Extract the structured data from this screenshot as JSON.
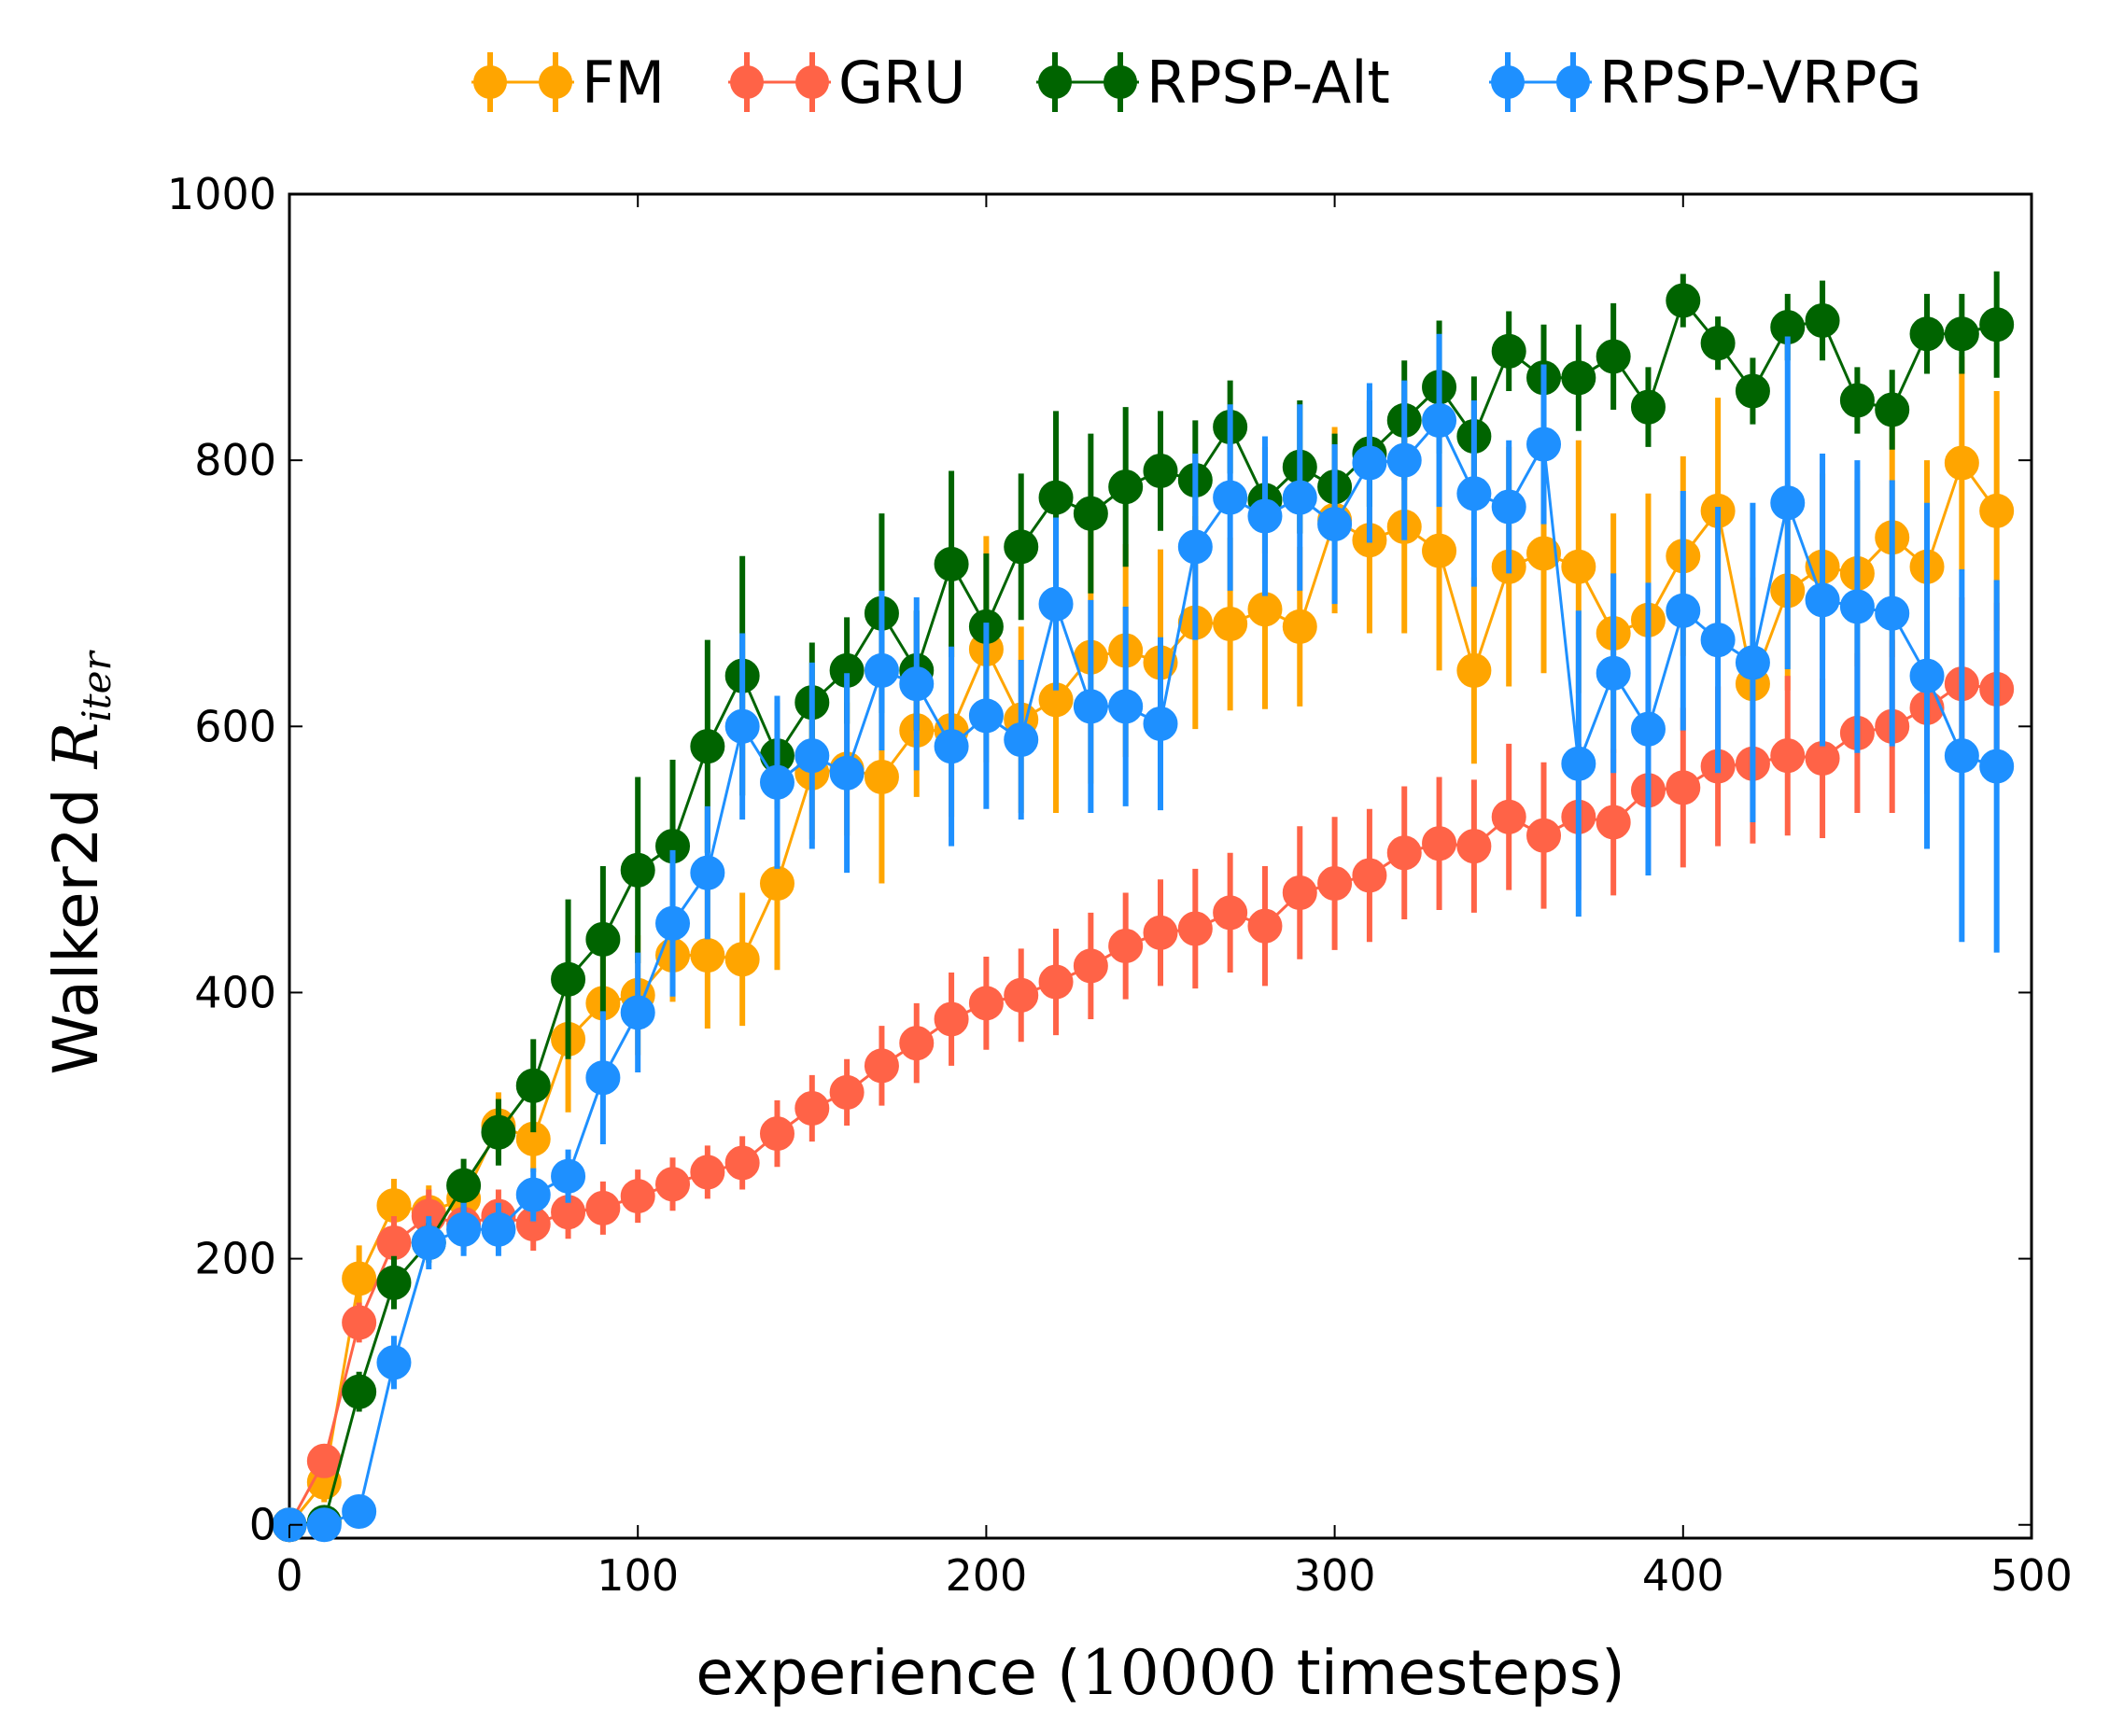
{
  "chart_data": {
    "type": "line",
    "title": "",
    "xlabel": {
      "prefix": "experience (",
      "math": "10000",
      "suffix": " timesteps)"
    },
    "ylabel": {
      "prefix": "Walker2d ",
      "math": "R",
      "sub": "iter"
    },
    "xlim": [
      0,
      500
    ],
    "ylim": [
      -10,
      1000
    ],
    "xticks": [
      0,
      100,
      200,
      300,
      400,
      500
    ],
    "yticks": [
      0,
      200,
      400,
      600,
      800,
      1000
    ],
    "grid": false,
    "legend_position": "top, outside plot area",
    "x": [
      0,
      10,
      20,
      30,
      40,
      50,
      60,
      70,
      80,
      90,
      100,
      110,
      120,
      130,
      140,
      150,
      160,
      170,
      180,
      190,
      200,
      210,
      220,
      230,
      240,
      250,
      260,
      270,
      280,
      290,
      300,
      310,
      320,
      330,
      340,
      350,
      360,
      370,
      380,
      390,
      400,
      410,
      420,
      430,
      440,
      450,
      460,
      470,
      480,
      490
    ],
    "series": [
      {
        "name": "FM",
        "color": "#ffa500",
        "values": [
          0,
          32,
          185,
          240,
          235,
          245,
          300,
          290,
          365,
          392,
          398,
          428,
          428,
          425,
          482,
          565,
          568,
          562,
          597,
          597,
          658,
          605,
          620,
          652,
          657,
          648,
          678,
          677,
          688,
          675,
          755,
          740,
          750,
          732,
          642,
          720,
          730,
          720,
          670,
          680,
          728,
          762,
          632,
          702,
          720,
          715,
          742,
          720,
          798,
          762
        ],
        "errors": [
          5,
          15,
          25,
          20,
          20,
          20,
          25,
          25,
          55,
          45,
          45,
          35,
          55,
          50,
          65,
          50,
          50,
          80,
          50,
          65,
          85,
          70,
          85,
          95,
          80,
          85,
          80,
          65,
          75,
          60,
          70,
          70,
          80,
          90,
          70,
          90,
          90,
          95,
          90,
          95,
          75,
          85,
          80,
          75,
          70,
          70,
          90,
          80,
          80,
          90
        ]
      },
      {
        "name": "GRU",
        "color": "#ff6347",
        "values": [
          0,
          48,
          152,
          212,
          232,
          226,
          232,
          226,
          235,
          238,
          247,
          256,
          265,
          272,
          294,
          313,
          325,
          345,
          362,
          380,
          392,
          398,
          408,
          420,
          435,
          445,
          448,
          460,
          450,
          475,
          482,
          488,
          505,
          512,
          510,
          532,
          518,
          532,
          528,
          552,
          554,
          570,
          572,
          578,
          576,
          595,
          600,
          614,
          632,
          628
        ],
        "errors": [
          3,
          10,
          15,
          20,
          20,
          20,
          20,
          20,
          20,
          20,
          20,
          20,
          20,
          20,
          25,
          25,
          25,
          30,
          30,
          35,
          35,
          35,
          40,
          40,
          40,
          40,
          45,
          45,
          45,
          50,
          50,
          50,
          50,
          50,
          50,
          55,
          55,
          55,
          55,
          60,
          60,
          60,
          60,
          60,
          60,
          60,
          65,
          65,
          65,
          65
        ]
      },
      {
        "name": "RPSP-Alt",
        "color": "#006400",
        "values": [
          0,
          2,
          100,
          182,
          212,
          255,
          295,
          330,
          410,
          440,
          492,
          510,
          585,
          638,
          578,
          618,
          642,
          685,
          642,
          722,
          675,
          735,
          772,
          760,
          780,
          792,
          785,
          825,
          770,
          795,
          780,
          805,
          830,
          855,
          818,
          882,
          862,
          862,
          878,
          840,
          920,
          888,
          852,
          900,
          905,
          845,
          838,
          895,
          895,
          902
        ],
        "errors": [
          3,
          10,
          15,
          20,
          15,
          20,
          25,
          35,
          60,
          55,
          70,
          65,
          80,
          90,
          40,
          45,
          40,
          75,
          45,
          70,
          55,
          55,
          65,
          60,
          60,
          45,
          45,
          35,
          40,
          50,
          40,
          40,
          45,
          50,
          45,
          30,
          40,
          40,
          40,
          30,
          20,
          20,
          25,
          25,
          30,
          25,
          30,
          30,
          30,
          40
        ]
      },
      {
        "name": "RPSP-VRPG",
        "color": "#1e90ff",
        "values": [
          0,
          0,
          10,
          122,
          212,
          222,
          222,
          248,
          262,
          336,
          385,
          452,
          490,
          600,
          558,
          578,
          565,
          642,
          632,
          585,
          608,
          590,
          692,
          615,
          615,
          602,
          735,
          772,
          758,
          772,
          752,
          798,
          800,
          830,
          775,
          765,
          812,
          572,
          640,
          598,
          687,
          665,
          648,
          768,
          695,
          690,
          685,
          638,
          578,
          570
        ],
        "errors": [
          3,
          5,
          10,
          20,
          20,
          20,
          20,
          20,
          20,
          50,
          45,
          55,
          50,
          70,
          65,
          70,
          75,
          60,
          65,
          75,
          70,
          60,
          65,
          80,
          75,
          65,
          70,
          70,
          60,
          70,
          60,
          60,
          60,
          65,
          70,
          50,
          60,
          115,
          75,
          110,
          90,
          100,
          120,
          125,
          110,
          110,
          100,
          130,
          140,
          140
        ]
      }
    ]
  }
}
